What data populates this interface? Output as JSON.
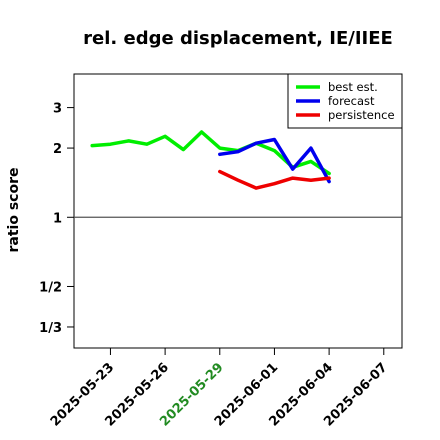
{
  "chart_data": {
    "type": "line",
    "title": "rel. edge displacement, IE/IIEE",
    "ylabel": "ratio score",
    "y_scale": "log",
    "ylim": [
      0.27,
      4.2
    ],
    "y_ticks": [
      {
        "value": 3,
        "label": "3"
      },
      {
        "value": 2,
        "label": "2"
      },
      {
        "value": 1,
        "label": "1"
      },
      {
        "value": 0.5,
        "label": "1/2"
      },
      {
        "value": 0.3333,
        "label": "1/3"
      }
    ],
    "reference_line": 1,
    "xlim": [
      "2025-05-21",
      "2025-06-08"
    ],
    "x_ticks": [
      {
        "value": "2025-05-23",
        "label": "2025-05-23",
        "color": "#000000"
      },
      {
        "value": "2025-05-26",
        "label": "2025-05-26",
        "color": "#000000"
      },
      {
        "value": "2025-05-29",
        "label": "2025-05-29",
        "color": "#228b22"
      },
      {
        "value": "2025-06-01",
        "label": "2025-06-01",
        "color": "#000000"
      },
      {
        "value": "2025-06-04",
        "label": "2025-06-04",
        "color": "#000000"
      },
      {
        "value": "2025-06-07",
        "label": "2025-06-07",
        "color": "#000000"
      }
    ],
    "legend_position": "top-right",
    "series": [
      {
        "name": "best est.",
        "color": "#00ee00",
        "points": [
          {
            "x": "2025-05-22",
            "y": 2.05
          },
          {
            "x": "2025-05-23",
            "y": 2.08
          },
          {
            "x": "2025-05-24",
            "y": 2.15
          },
          {
            "x": "2025-05-25",
            "y": 2.08
          },
          {
            "x": "2025-05-26",
            "y": 2.25
          },
          {
            "x": "2025-05-27",
            "y": 1.97
          },
          {
            "x": "2025-05-28",
            "y": 2.35
          },
          {
            "x": "2025-05-29",
            "y": 2.0
          },
          {
            "x": "2025-05-30",
            "y": 1.95
          },
          {
            "x": "2025-05-31",
            "y": 2.1
          },
          {
            "x": "2025-06-01",
            "y": 1.95
          },
          {
            "x": "2025-06-02",
            "y": 1.65
          },
          {
            "x": "2025-06-03",
            "y": 1.75
          },
          {
            "x": "2025-06-04",
            "y": 1.55
          }
        ]
      },
      {
        "name": "forecast",
        "color": "#0000ee",
        "points": [
          {
            "x": "2025-05-29",
            "y": 1.88
          },
          {
            "x": "2025-05-30",
            "y": 1.93
          },
          {
            "x": "2025-05-31",
            "y": 2.1
          },
          {
            "x": "2025-06-01",
            "y": 2.18
          },
          {
            "x": "2025-06-02",
            "y": 1.62
          },
          {
            "x": "2025-06-03",
            "y": 2.0
          },
          {
            "x": "2025-06-04",
            "y": 1.43
          }
        ]
      },
      {
        "name": "persistence",
        "color": "#ee0000",
        "points": [
          {
            "x": "2025-05-29",
            "y": 1.58
          },
          {
            "x": "2025-05-30",
            "y": 1.45
          },
          {
            "x": "2025-05-31",
            "y": 1.34
          },
          {
            "x": "2025-06-01",
            "y": 1.4
          },
          {
            "x": "2025-06-02",
            "y": 1.48
          },
          {
            "x": "2025-06-03",
            "y": 1.45
          },
          {
            "x": "2025-06-04",
            "y": 1.48
          }
        ]
      }
    ]
  }
}
